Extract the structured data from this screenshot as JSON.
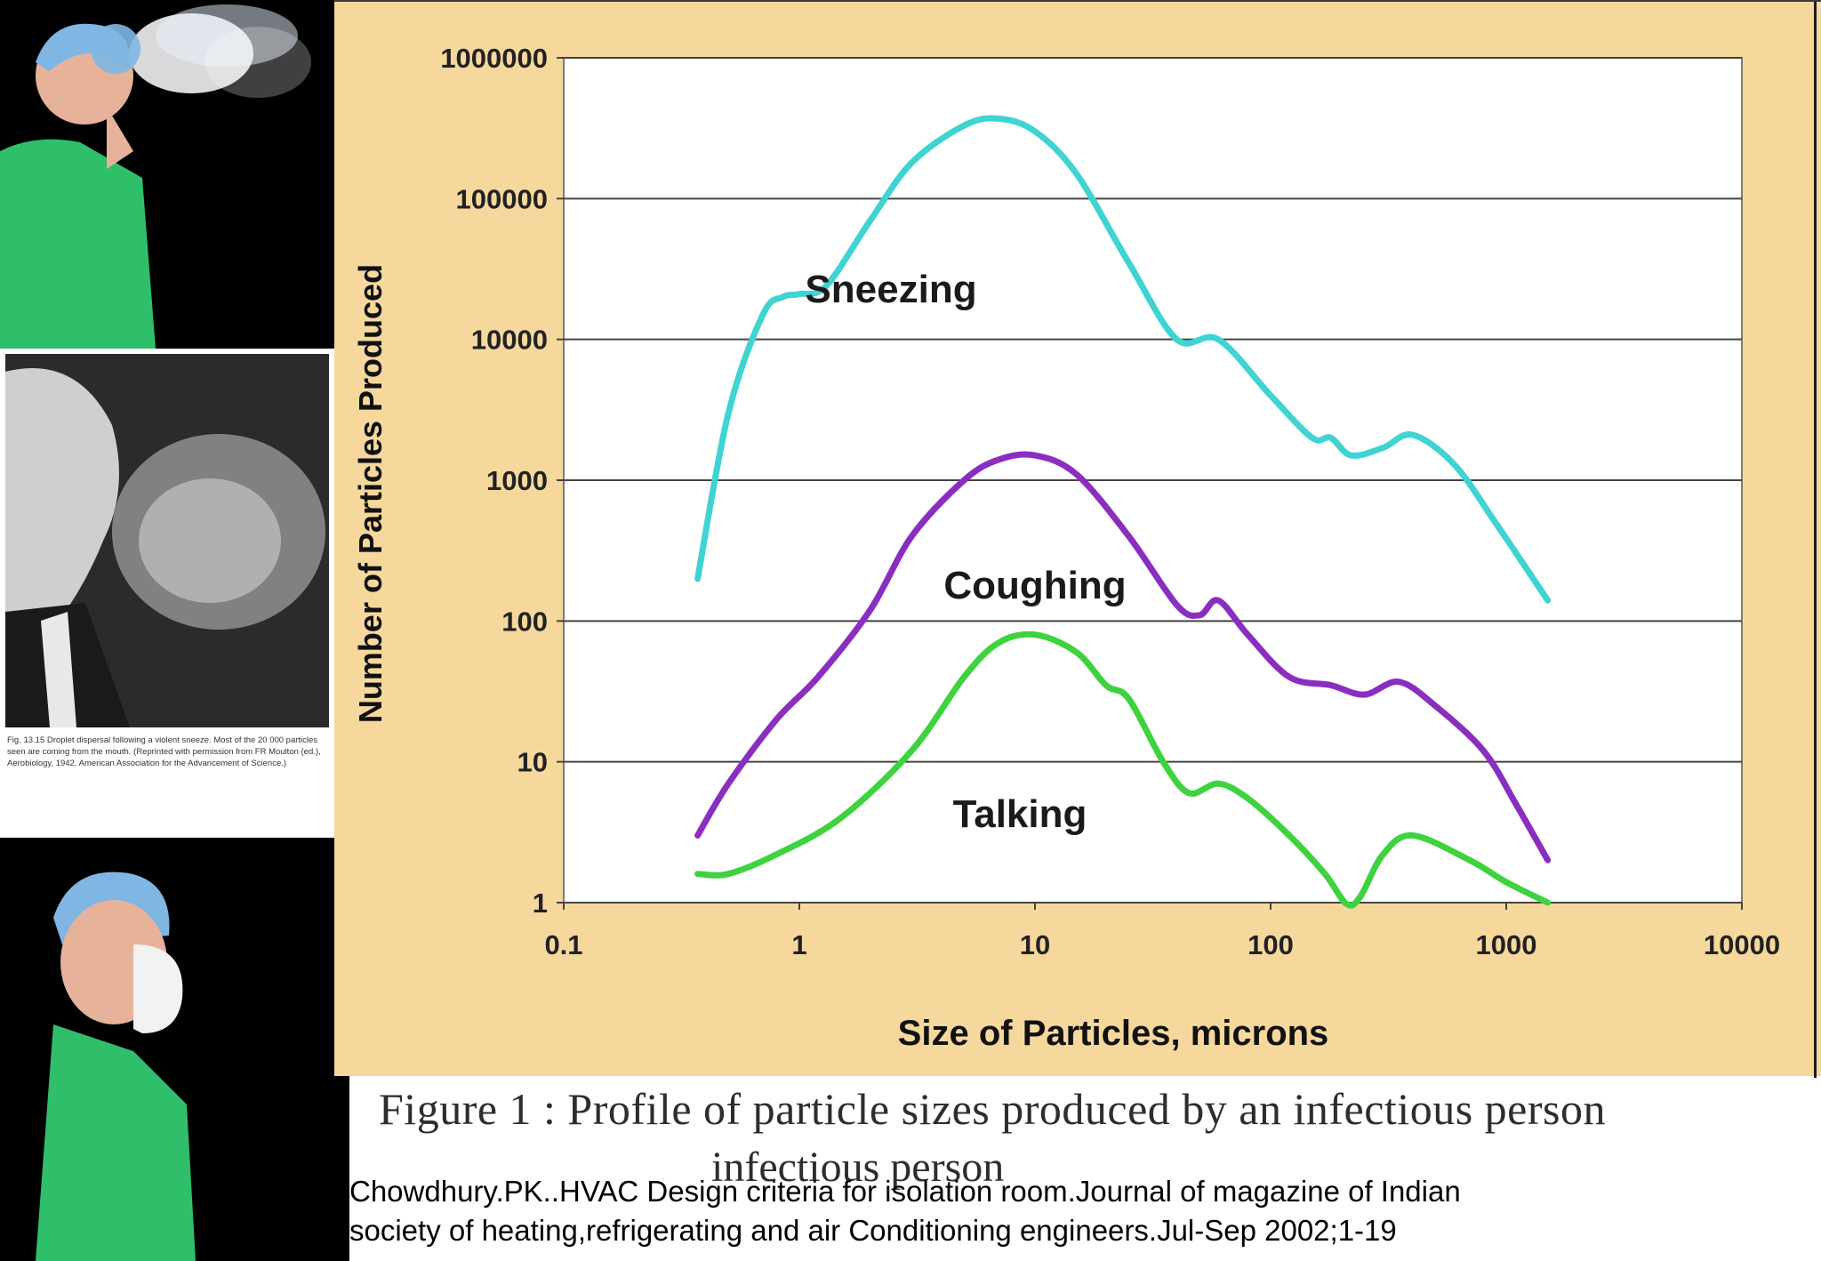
{
  "chart_data": {
    "type": "line",
    "title": "",
    "xlabel": "Size of Particles, microns",
    "ylabel": "Number of Particles Produced",
    "xscale": "log",
    "yscale": "log",
    "xlim": [
      0.1,
      10000
    ],
    "ylim": [
      1,
      1000000
    ],
    "x_ticks": [
      "0.1",
      "1",
      "10",
      "100",
      "1000",
      "10000"
    ],
    "y_ticks": [
      "1",
      "10",
      "100",
      "1000",
      "10000",
      "100000",
      "1000000"
    ],
    "grid": "horizontal",
    "series": [
      {
        "name": "Sneezing",
        "color": "#3fd3d3",
        "x": [
          0.37,
          0.5,
          0.7,
          0.85,
          1.0,
          1.3,
          2.0,
          3.0,
          5.0,
          7.0,
          10.0,
          15.0,
          25.0,
          40.0,
          60.0,
          100.0,
          150.0,
          180.0,
          220.0,
          300.0,
          400.0,
          600.0,
          900.0,
          1500.0
        ],
        "y": [
          200,
          3000,
          15000,
          20000,
          21000,
          24000,
          70000,
          180000,
          330000,
          370000,
          300000,
          150000,
          35000,
          10000,
          10000,
          4000,
          2000,
          2000,
          1500,
          1700,
          2100,
          1300,
          500,
          140
        ]
      },
      {
        "name": "Coughing",
        "color": "#8a2ec0",
        "x": [
          0.37,
          0.5,
          0.8,
          1.2,
          2.0,
          3.0,
          5.0,
          7.0,
          10.0,
          15.0,
          25.0,
          40.0,
          50.0,
          60.0,
          80.0,
          120.0,
          180.0,
          250.0,
          350.0,
          500.0,
          800.0,
          1100.0,
          1500.0
        ],
        "y": [
          3,
          7,
          20,
          40,
          120,
          400,
          1000,
          1400,
          1500,
          1100,
          400,
          130,
          110,
          140,
          80,
          40,
          35,
          30,
          37,
          25,
          12,
          5,
          2
        ]
      },
      {
        "name": "Talking",
        "color": "#3fd23f",
        "x": [
          0.37,
          0.5,
          0.8,
          1.5,
          3.0,
          5.0,
          7.0,
          10.0,
          15.0,
          20.0,
          25.0,
          35.0,
          45.0,
          60.0,
          80.0,
          120.0,
          170.0,
          210.0,
          240.0,
          300.0,
          400.0,
          700.0,
          1000.0,
          1500.0
        ],
        "y": [
          1.6,
          1.6,
          2.2,
          4,
          12,
          40,
          70,
          80,
          60,
          35,
          28,
          10,
          6,
          7,
          5.5,
          3,
          1.6,
          0.98,
          1.1,
          2.2,
          3,
          2,
          1.4,
          1.0
        ]
      }
    ]
  },
  "figure_caption": "Figure 1 :  Profile of particle sizes produced by an infectious person",
  "figure_caption_overflow": "infectious person",
  "citation": {
    "line1": "Chowdhury.PK..HVAC Design criteria for isolation room.Journal of magazine of Indian",
    "line2": "society of heating,refrigerating and air Conditioning engineers.Jul-Sep 2002;1-19"
  },
  "photo_caption": "Fig. 13.15 Droplet dispersal following a violent sneeze. Most of the 20 000 particles seen are coming from the mouth. (Reprinted with permission from FR Moulton (ed.), Aerobiology, 1942. American Association for the Advancement of Science.)"
}
